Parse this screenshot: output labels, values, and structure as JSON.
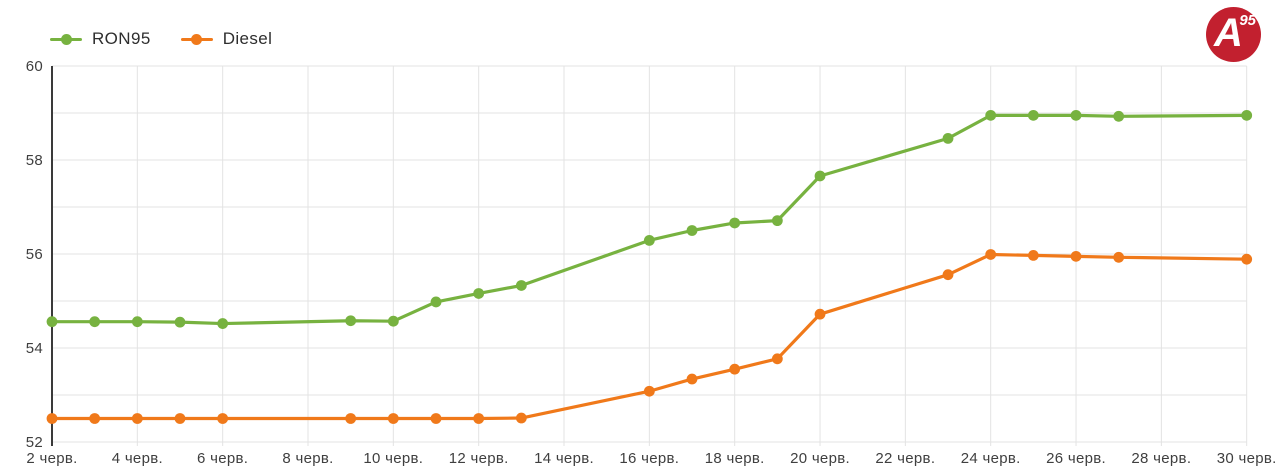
{
  "legend": {
    "items": [
      {
        "label": "RON95",
        "color": "#77b240"
      },
      {
        "label": "Diesel",
        "color": "#f0791a"
      }
    ]
  },
  "logo": {
    "letter": "A",
    "sup": "95",
    "circle_color": "#c2202f",
    "text_color": "#ffffff"
  },
  "chart_data": {
    "type": "line",
    "title": "",
    "xlabel": "",
    "ylabel": "",
    "x_unit": "June date (черв.)",
    "x": [
      2,
      3,
      4,
      5,
      6,
      9,
      10,
      11,
      12,
      13,
      16,
      17,
      18,
      19,
      20,
      23,
      24,
      25,
      26,
      27,
      30
    ],
    "series": [
      {
        "name": "RON95",
        "color": "#77b240",
        "values": [
          54.56,
          54.56,
          54.56,
          54.55,
          54.52,
          54.58,
          54.57,
          54.98,
          55.16,
          55.33,
          56.29,
          56.5,
          56.66,
          56.71,
          57.66,
          58.46,
          58.95,
          58.95,
          58.95,
          58.93,
          58.95
        ]
      },
      {
        "name": "Diesel",
        "color": "#f0791a",
        "values": [
          52.5,
          52.5,
          52.5,
          52.5,
          52.5,
          52.5,
          52.5,
          52.5,
          52.5,
          52.51,
          53.08,
          53.34,
          53.55,
          53.77,
          54.72,
          55.56,
          55.99,
          55.97,
          55.95,
          55.93,
          55.89
        ]
      }
    ],
    "x_ticks": [
      {
        "day": 2,
        "label": "2 черв."
      },
      {
        "day": 4,
        "label": "4 черв."
      },
      {
        "day": 6,
        "label": "6 черв."
      },
      {
        "day": 8,
        "label": "8 черв."
      },
      {
        "day": 10,
        "label": "10 черв."
      },
      {
        "day": 12,
        "label": "12 черв."
      },
      {
        "day": 14,
        "label": "14 черв."
      },
      {
        "day": 16,
        "label": "16 черв."
      },
      {
        "day": 18,
        "label": "18 черв."
      },
      {
        "day": 20,
        "label": "20 черв."
      },
      {
        "day": 22,
        "label": "22 черв."
      },
      {
        "day": 24,
        "label": "24 черв."
      },
      {
        "day": 26,
        "label": "26 черв."
      },
      {
        "day": 28,
        "label": "28 черв."
      },
      {
        "day": 30,
        "label": "30 черв."
      }
    ],
    "y_ticks": [
      {
        "value": 52,
        "label": "52"
      },
      {
        "value": 54,
        "label": "54"
      },
      {
        "value": 56,
        "label": "56"
      },
      {
        "value": 58,
        "label": "58"
      },
      {
        "value": 60,
        "label": "60"
      }
    ],
    "xlim": [
      2,
      30
    ],
    "ylim": [
      52,
      60
    ],
    "y_grid_step": 1,
    "grid": true,
    "legend_position": "top-left",
    "colors": {
      "grid": "#e3e3e3",
      "axis": "#3a3a3a",
      "tick_text": "#3f3f3f"
    }
  }
}
